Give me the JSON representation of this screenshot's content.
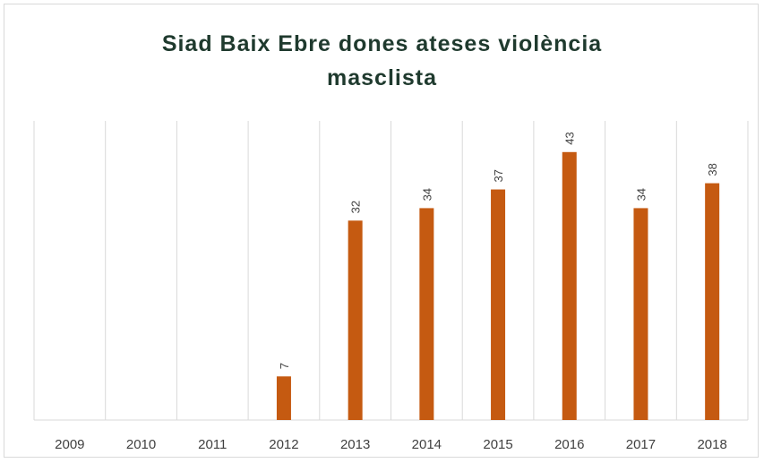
{
  "chart_data": {
    "type": "bar",
    "title_lines": [
      "Siad Baix Ebre dones ateses violència",
      "masclista"
    ],
    "categories": [
      "2009",
      "2010",
      "2011",
      "2012",
      "2013",
      "2014",
      "2015",
      "2016",
      "2017",
      "2018"
    ],
    "values": [
      null,
      null,
      null,
      7,
      32,
      34,
      37,
      43,
      34,
      38
    ],
    "data_labels": [
      "",
      "",
      "",
      "7",
      "32",
      "34",
      "37",
      "43",
      "34",
      "38"
    ],
    "ylim": [
      0,
      48
    ],
    "bar_color": "#c55a11",
    "grid": "vertical",
    "legend": "none"
  }
}
